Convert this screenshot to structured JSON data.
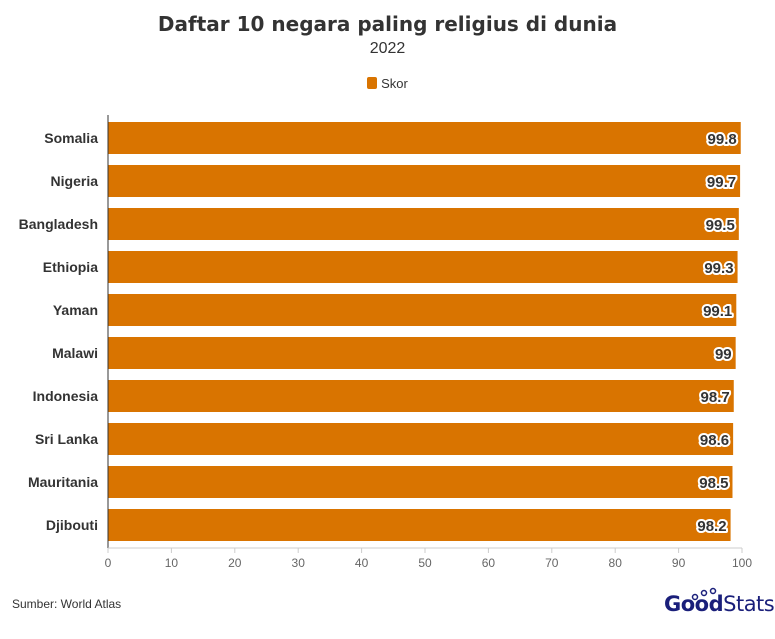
{
  "chart_data": {
    "type": "bar",
    "orientation": "horizontal",
    "title": "Daftar 10 negara paling religius di dunia",
    "subtitle": "2022",
    "categories": [
      "Somalia",
      "Nigeria",
      "Bangladesh",
      "Ethiopia",
      "Yaman",
      "Malawi",
      "Indonesia",
      "Sri Lanka",
      "Mauritania",
      "Djibouti"
    ],
    "series": [
      {
        "name": "Skor",
        "values": [
          99.8,
          99.7,
          99.5,
          99.3,
          99.1,
          99,
          98.7,
          98.6,
          98.5,
          98.2
        ],
        "color": "#d97400"
      }
    ],
    "xlim": [
      0,
      100
    ],
    "xticks": [
      0,
      10,
      20,
      30,
      40,
      50,
      60,
      70,
      80,
      90,
      100
    ],
    "legend": "top-center",
    "grid": false
  },
  "source": "Sumber: World Atlas",
  "logo": {
    "bold": "Good",
    "light": "Stats"
  }
}
